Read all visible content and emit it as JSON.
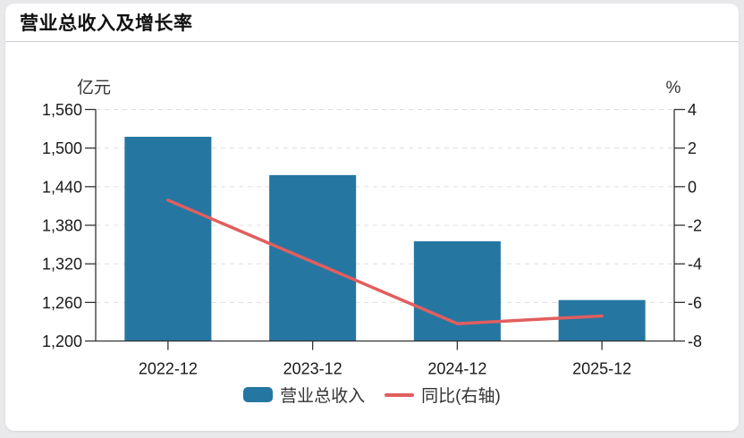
{
  "header": {
    "title": "营业总收入及增长率"
  },
  "chart_data": {
    "type": "bar",
    "subtype": "bar-line-combo",
    "title": "营业总收入及增长率",
    "categories": [
      "2022-12",
      "2023-12",
      "2024-12",
      "2025-12"
    ],
    "series": [
      {
        "name": "营业总收入",
        "type": "bar",
        "yaxis": "left",
        "unit": "亿元",
        "color": "#2577a2",
        "values": [
          1517.6,
          1458.0,
          1355.1,
          1263.7
        ]
      },
      {
        "name": "同比(右轴)",
        "type": "line",
        "yaxis": "right",
        "unit": "%",
        "color": "#e25e5e",
        "values": [
          -0.7,
          -3.9,
          -7.1,
          -6.7
        ]
      }
    ],
    "left_axis": {
      "unit_label": "亿元",
      "min": 1200,
      "max": 1560,
      "interval": 60,
      "ticks": [
        "1,560",
        "1,500",
        "1,440",
        "1,380",
        "1,320",
        "1,260",
        "1,200"
      ]
    },
    "right_axis": {
      "unit_label": "%",
      "min": -8,
      "max": 4,
      "interval": 2,
      "ticks": [
        "4",
        "2",
        "0",
        "-2",
        "-4",
        "-6",
        "-8"
      ]
    },
    "grid": {
      "horizontal_gridlines": true,
      "style": "dashed"
    },
    "legend": {
      "position": "bottom-center",
      "items": [
        "营业总收入",
        "同比(右轴)"
      ]
    }
  },
  "colors": {
    "page_bg": "#e9e9eb",
    "card_bg": "#ffffff",
    "divider": "#c9cace",
    "axis_line": "#333333",
    "axis_text": "#1a1a1a",
    "unit_text": "#333333",
    "gridline": "#dedede",
    "bar": "#2577a2",
    "line": "#e25e5e"
  }
}
